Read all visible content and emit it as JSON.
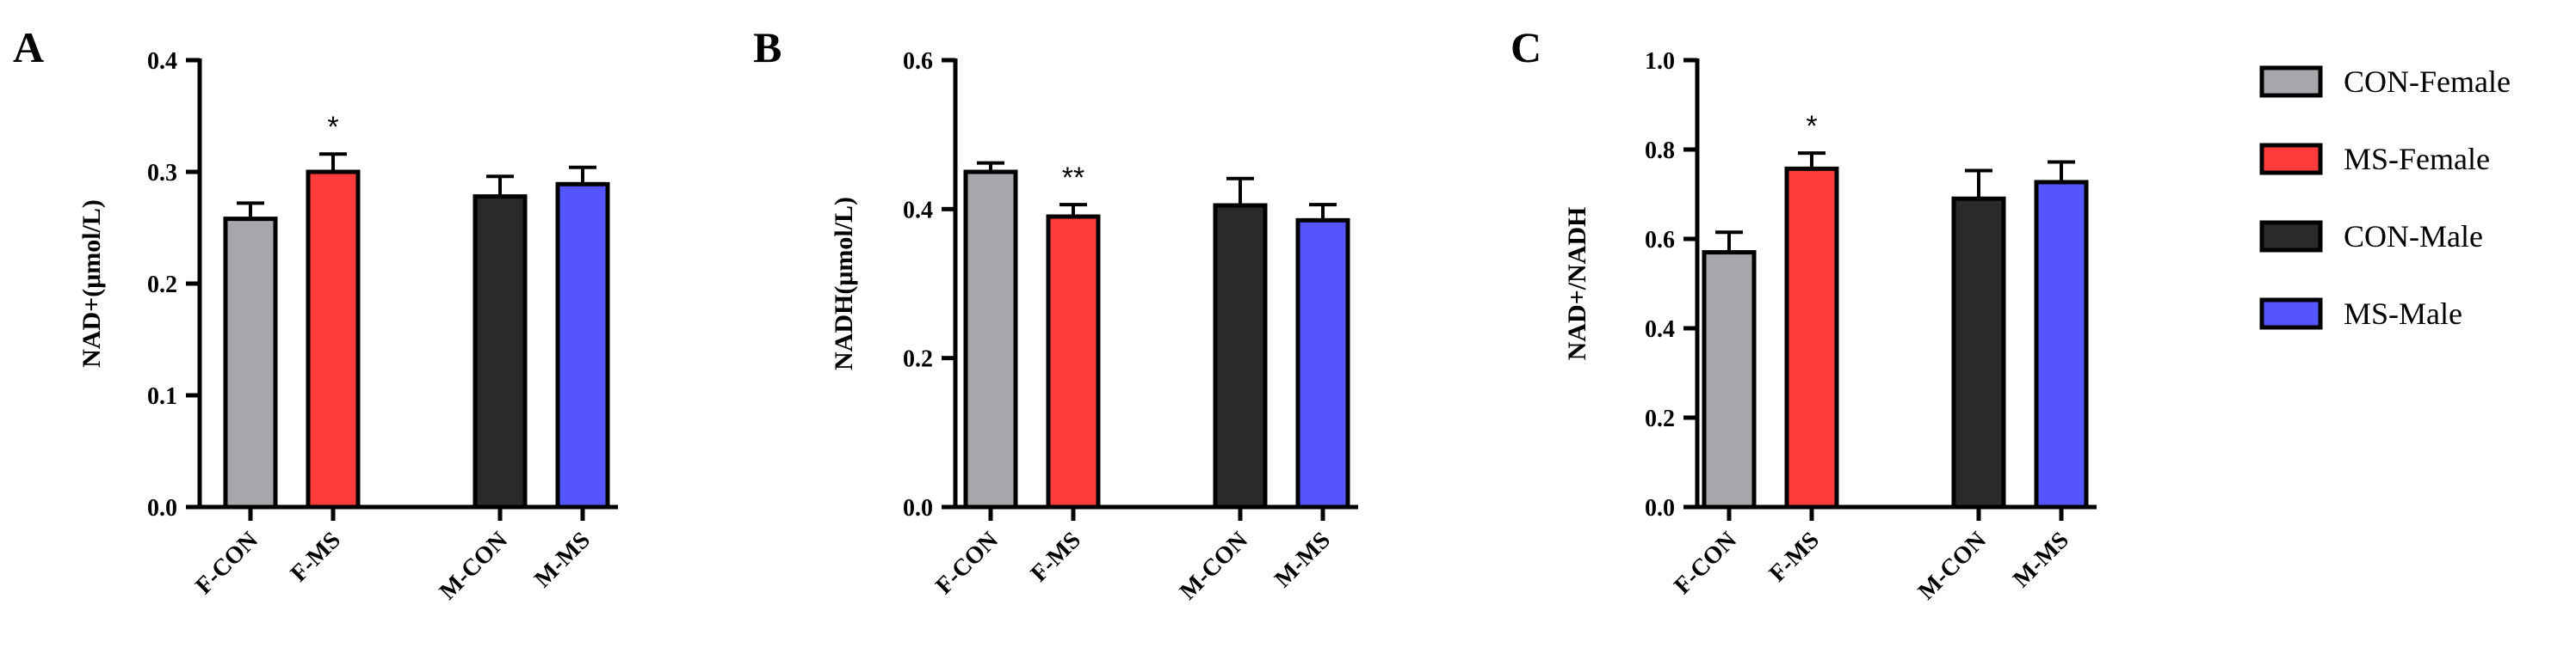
{
  "chart_data": [
    {
      "panel": "A",
      "type": "bar",
      "title": "",
      "xlabel": "",
      "ylabel": "NAD+(μmol/L)",
      "ylim": [
        0,
        0.4
      ],
      "yticks": [
        0.0,
        0.1,
        0.2,
        0.3,
        0.4
      ],
      "ytick_labels": [
        "0.0",
        "0.1",
        "0.2",
        "0.3",
        "0.4"
      ],
      "categories": [
        "F-CON",
        "F-MS",
        "M-CON",
        "M-MS"
      ],
      "values": [
        0.258,
        0.3,
        0.278,
        0.289
      ],
      "errors": [
        0.014,
        0.016,
        0.018,
        0.015
      ],
      "significance": [
        "",
        "*",
        "",
        ""
      ],
      "grid": false
    },
    {
      "panel": "B",
      "type": "bar",
      "title": "",
      "xlabel": "",
      "ylabel": "NADH(μmol/L)",
      "ylim": [
        0,
        0.6
      ],
      "yticks": [
        0.0,
        0.2,
        0.4,
        0.6
      ],
      "ytick_labels": [
        "0.0",
        "0.2",
        "0.4",
        "0.6"
      ],
      "categories": [
        "F-CON",
        "F-MS",
        "M-CON",
        "M-MS"
      ],
      "values": [
        0.45,
        0.39,
        0.405,
        0.385
      ],
      "errors": [
        0.012,
        0.016,
        0.036,
        0.021
      ],
      "significance": [
        "",
        "**",
        "",
        ""
      ],
      "grid": false
    },
    {
      "panel": "C",
      "type": "bar",
      "title": "",
      "xlabel": "",
      "ylabel": "NAD+/NADH",
      "ylim": [
        0,
        1.0
      ],
      "yticks": [
        0.0,
        0.2,
        0.4,
        0.6,
        0.8,
        1.0
      ],
      "ytick_labels": [
        "0.0",
        "0.2",
        "0.4",
        "0.6",
        "0.8",
        "1.0"
      ],
      "categories": [
        "F-CON",
        "F-MS",
        "M-CON",
        "M-MS"
      ],
      "values": [
        0.57,
        0.757,
        0.69,
        0.727
      ],
      "errors": [
        0.045,
        0.035,
        0.063,
        0.045
      ],
      "significance": [
        "",
        "*",
        "",
        ""
      ],
      "grid": false
    }
  ],
  "legend": {
    "placement": "right",
    "entries": [
      {
        "label": "CON-Female",
        "color": "#a7a7ab"
      },
      {
        "label": "MS-Female",
        "color": "#ff3b3b"
      },
      {
        "label": "CON-Male",
        "color": "#2a2a2a"
      },
      {
        "label": "MS-Male",
        "color": "#5555ff"
      }
    ]
  },
  "bar_colors": [
    "#a7a7ab",
    "#ff3b3b",
    "#2a2a2a",
    "#5555ff"
  ]
}
